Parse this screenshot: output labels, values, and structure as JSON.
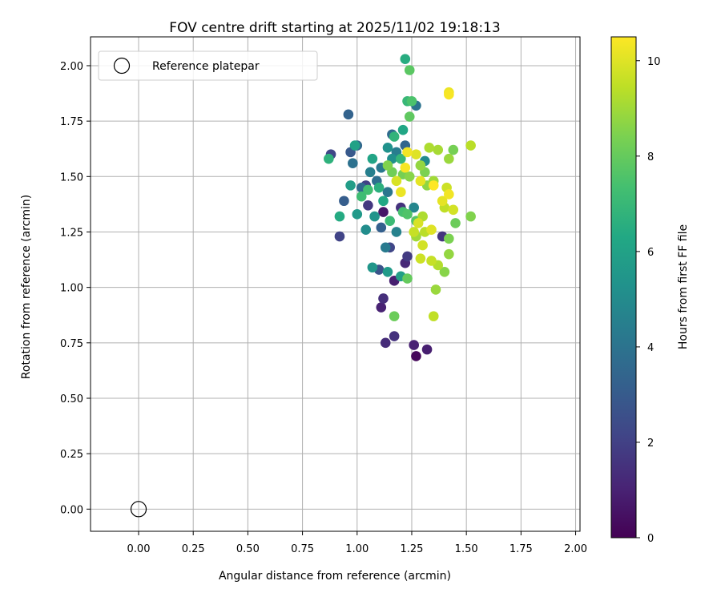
{
  "chart_data": {
    "type": "scatter",
    "title": "FOV centre drift starting at 2025/11/02 19:18:13",
    "xlabel": "Angular distance from reference (arcmin)",
    "ylabel": "Rotation from reference (arcmin)",
    "xlim": [
      -0.22,
      2.02
    ],
    "ylim": [
      -0.1,
      2.13
    ],
    "x_ticks": [
      "0.00",
      "0.25",
      "0.50",
      "0.75",
      "1.00",
      "1.25",
      "1.50",
      "1.75",
      "2.00"
    ],
    "y_ticks": [
      "0.00",
      "0.25",
      "0.50",
      "0.75",
      "1.00",
      "1.25",
      "1.50",
      "1.75",
      "2.00"
    ],
    "grid": true,
    "legend": {
      "placement": "top-left",
      "entries": [
        "Reference platepar"
      ]
    },
    "reference_point": {
      "x": 0.0,
      "y": 0.0,
      "label": "Reference platepar"
    },
    "colorbar": {
      "label": "Hours from first FF file",
      "range": [
        0,
        10.5
      ],
      "ticks": [
        "0",
        "2",
        "4",
        "6",
        "8",
        "10"
      ],
      "colormap": "viridis"
    },
    "points": [
      {
        "x": 1.27,
        "y": 0.69,
        "h": 0.2
      },
      {
        "x": 1.32,
        "y": 0.72,
        "h": 0.9
      },
      {
        "x": 1.26,
        "y": 0.74,
        "h": 1.0
      },
      {
        "x": 1.13,
        "y": 0.75,
        "h": 1.3
      },
      {
        "x": 1.17,
        "y": 0.78,
        "h": 1.5
      },
      {
        "x": 1.11,
        "y": 0.91,
        "h": 1.0
      },
      {
        "x": 1.12,
        "y": 0.95,
        "h": 1.4
      },
      {
        "x": 1.17,
        "y": 1.03,
        "h": 0.9
      },
      {
        "x": 1.22,
        "y": 1.11,
        "h": 1.2
      },
      {
        "x": 1.23,
        "y": 1.14,
        "h": 1.8
      },
      {
        "x": 1.15,
        "y": 1.18,
        "h": 2.2
      },
      {
        "x": 1.2,
        "y": 1.36,
        "h": 1.5
      },
      {
        "x": 1.12,
        "y": 1.34,
        "h": 0.6
      },
      {
        "x": 1.39,
        "y": 1.23,
        "h": 1.6
      },
      {
        "x": 1.1,
        "y": 1.08,
        "h": 2.7
      },
      {
        "x": 0.92,
        "y": 1.23,
        "h": 2.1
      },
      {
        "x": 0.88,
        "y": 1.6,
        "h": 2.2
      },
      {
        "x": 1.04,
        "y": 1.46,
        "h": 2.0
      },
      {
        "x": 1.05,
        "y": 1.37,
        "h": 1.7
      },
      {
        "x": 0.96,
        "y": 1.78,
        "h": 3.3
      },
      {
        "x": 0.94,
        "y": 1.39,
        "h": 3.1
      },
      {
        "x": 1.11,
        "y": 1.27,
        "h": 3.2
      },
      {
        "x": 1.0,
        "y": 1.64,
        "h": 3.5
      },
      {
        "x": 0.97,
        "y": 1.61,
        "h": 2.9
      },
      {
        "x": 1.16,
        "y": 1.69,
        "h": 3.6
      },
      {
        "x": 1.22,
        "y": 1.64,
        "h": 3.4
      },
      {
        "x": 1.27,
        "y": 1.82,
        "h": 4.0
      },
      {
        "x": 1.11,
        "y": 1.54,
        "h": 4.2
      },
      {
        "x": 1.18,
        "y": 1.61,
        "h": 4.4
      },
      {
        "x": 1.09,
        "y": 1.48,
        "h": 3.8
      },
      {
        "x": 0.98,
        "y": 1.56,
        "h": 3.9
      },
      {
        "x": 1.02,
        "y": 1.45,
        "h": 3.6
      },
      {
        "x": 1.06,
        "y": 1.52,
        "h": 4.5
      },
      {
        "x": 1.14,
        "y": 1.43,
        "h": 4.1
      },
      {
        "x": 1.18,
        "y": 1.25,
        "h": 4.6
      },
      {
        "x": 1.13,
        "y": 1.18,
        "h": 4.3
      },
      {
        "x": 1.26,
        "y": 1.36,
        "h": 4.8
      },
      {
        "x": 1.31,
        "y": 1.57,
        "h": 5.0
      },
      {
        "x": 1.16,
        "y": 1.58,
        "h": 5.2
      },
      {
        "x": 1.08,
        "y": 1.32,
        "h": 5.4
      },
      {
        "x": 1.04,
        "y": 1.26,
        "h": 5.1
      },
      {
        "x": 1.07,
        "y": 1.09,
        "h": 5.5
      },
      {
        "x": 1.14,
        "y": 1.07,
        "h": 5.7
      },
      {
        "x": 1.2,
        "y": 1.05,
        "h": 5.9
      },
      {
        "x": 1.0,
        "y": 1.33,
        "h": 5.6
      },
      {
        "x": 0.97,
        "y": 1.46,
        "h": 5.8
      },
      {
        "x": 0.99,
        "y": 1.64,
        "h": 6.0
      },
      {
        "x": 1.07,
        "y": 1.58,
        "h": 6.1
      },
      {
        "x": 1.14,
        "y": 1.63,
        "h": 5.3
      },
      {
        "x": 1.21,
        "y": 1.71,
        "h": 6.2
      },
      {
        "x": 1.22,
        "y": 2.03,
        "h": 6.5
      },
      {
        "x": 1.23,
        "y": 1.84,
        "h": 7.0
      },
      {
        "x": 1.25,
        "y": 1.84,
        "h": 7.5
      },
      {
        "x": 1.24,
        "y": 1.98,
        "h": 7.8
      },
      {
        "x": 1.24,
        "y": 1.77,
        "h": 7.9
      },
      {
        "x": 1.17,
        "y": 1.68,
        "h": 6.8
      },
      {
        "x": 1.2,
        "y": 1.58,
        "h": 6.9
      },
      {
        "x": 1.1,
        "y": 1.45,
        "h": 6.6
      },
      {
        "x": 1.12,
        "y": 1.39,
        "h": 6.3
      },
      {
        "x": 1.02,
        "y": 1.41,
        "h": 7.2
      },
      {
        "x": 1.05,
        "y": 1.44,
        "h": 7.3
      },
      {
        "x": 0.87,
        "y": 1.58,
        "h": 6.7
      },
      {
        "x": 0.92,
        "y": 1.32,
        "h": 6.4
      },
      {
        "x": 1.15,
        "y": 1.3,
        "h": 7.1
      },
      {
        "x": 1.21,
        "y": 1.34,
        "h": 7.4
      },
      {
        "x": 1.23,
        "y": 1.33,
        "h": 7.6
      },
      {
        "x": 1.27,
        "y": 1.3,
        "h": 7.7
      },
      {
        "x": 1.23,
        "y": 1.04,
        "h": 8.0
      },
      {
        "x": 1.17,
        "y": 0.87,
        "h": 8.1
      },
      {
        "x": 1.16,
        "y": 1.52,
        "h": 8.2
      },
      {
        "x": 1.14,
        "y": 1.55,
        "h": 8.5
      },
      {
        "x": 1.21,
        "y": 1.51,
        "h": 8.3
      },
      {
        "x": 1.24,
        "y": 1.5,
        "h": 8.6
      },
      {
        "x": 1.29,
        "y": 1.55,
        "h": 8.8
      },
      {
        "x": 1.31,
        "y": 1.52,
        "h": 8.4
      },
      {
        "x": 1.32,
        "y": 1.46,
        "h": 8.7
      },
      {
        "x": 1.35,
        "y": 1.48,
        "h": 9.0
      },
      {
        "x": 1.37,
        "y": 1.62,
        "h": 9.1
      },
      {
        "x": 1.33,
        "y": 1.63,
        "h": 9.2
      },
      {
        "x": 1.42,
        "y": 1.58,
        "h": 8.9
      },
      {
        "x": 1.44,
        "y": 1.62,
        "h": 8.3
      },
      {
        "x": 1.52,
        "y": 1.64,
        "h": 9.4
      },
      {
        "x": 1.52,
        "y": 1.32,
        "h": 8.5
      },
      {
        "x": 1.45,
        "y": 1.29,
        "h": 8.1
      },
      {
        "x": 1.42,
        "y": 1.22,
        "h": 8.4
      },
      {
        "x": 1.42,
        "y": 1.15,
        "h": 8.8
      },
      {
        "x": 1.4,
        "y": 1.07,
        "h": 8.6
      },
      {
        "x": 1.36,
        "y": 0.99,
        "h": 8.9
      },
      {
        "x": 1.35,
        "y": 0.87,
        "h": 9.5
      },
      {
        "x": 1.37,
        "y": 1.1,
        "h": 9.3
      },
      {
        "x": 1.34,
        "y": 1.12,
        "h": 9.6
      },
      {
        "x": 1.29,
        "y": 1.13,
        "h": 9.7
      },
      {
        "x": 1.3,
        "y": 1.19,
        "h": 9.8
      },
      {
        "x": 1.31,
        "y": 1.25,
        "h": 9.4
      },
      {
        "x": 1.27,
        "y": 1.23,
        "h": 9.0
      },
      {
        "x": 1.28,
        "y": 1.29,
        "h": 9.9
      },
      {
        "x": 1.3,
        "y": 1.32,
        "h": 9.2
      },
      {
        "x": 1.34,
        "y": 1.26,
        "h": 10.0
      },
      {
        "x": 1.39,
        "y": 1.39,
        "h": 10.1
      },
      {
        "x": 1.4,
        "y": 1.36,
        "h": 9.5
      },
      {
        "x": 1.42,
        "y": 1.42,
        "h": 10.3
      },
      {
        "x": 1.41,
        "y": 1.45,
        "h": 9.7
      },
      {
        "x": 1.44,
        "y": 1.35,
        "h": 9.8
      },
      {
        "x": 1.42,
        "y": 1.87,
        "h": 10.4
      },
      {
        "x": 1.42,
        "y": 1.88,
        "h": 10.2
      },
      {
        "x": 1.23,
        "y": 1.61,
        "h": 10.3
      },
      {
        "x": 1.27,
        "y": 1.6,
        "h": 10.0
      },
      {
        "x": 1.22,
        "y": 1.54,
        "h": 10.4
      },
      {
        "x": 1.29,
        "y": 1.48,
        "h": 10.1
      },
      {
        "x": 1.2,
        "y": 1.43,
        "h": 10.2
      },
      {
        "x": 1.18,
        "y": 1.48,
        "h": 9.9
      },
      {
        "x": 1.35,
        "y": 1.46,
        "h": 10.5
      },
      {
        "x": 1.26,
        "y": 1.25,
        "h": 9.6
      }
    ]
  }
}
